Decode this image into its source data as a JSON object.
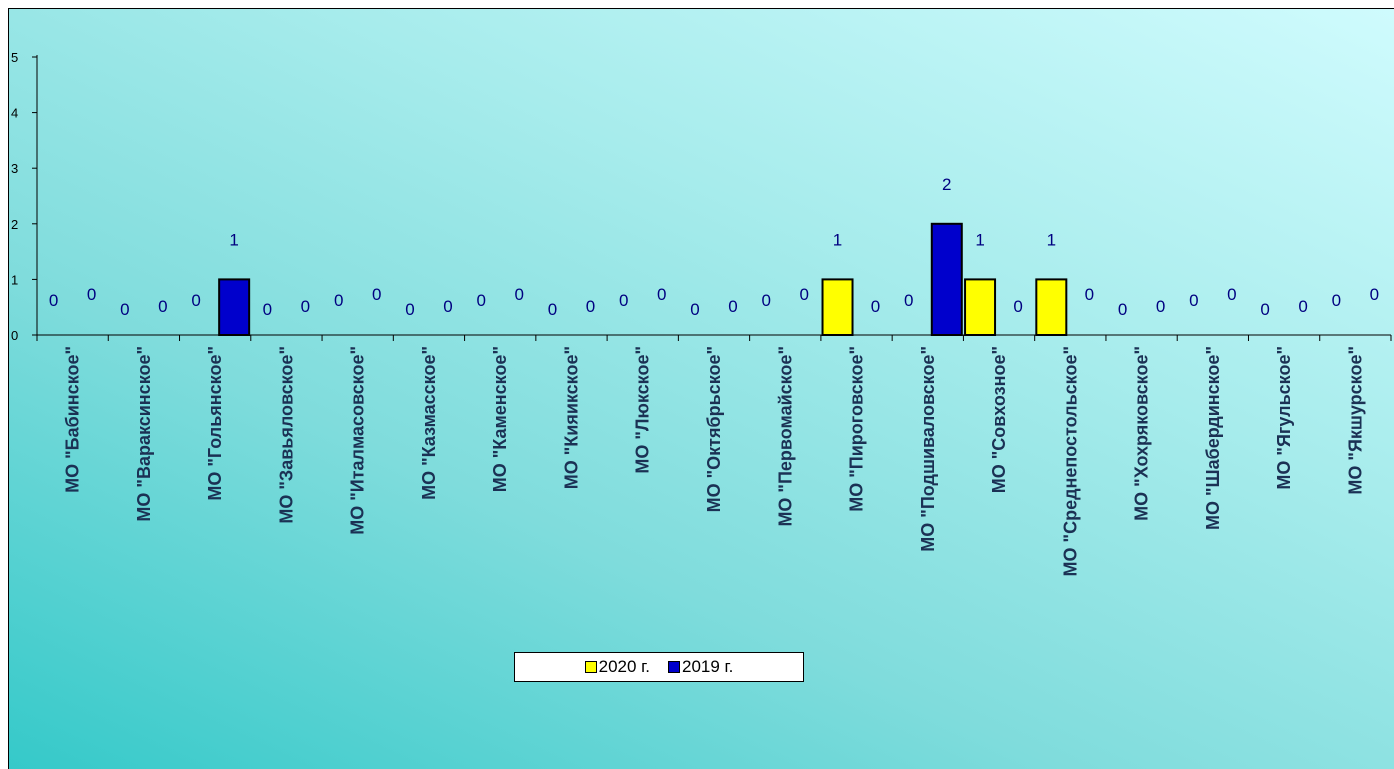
{
  "chart_data": {
    "type": "bar",
    "categories": [
      "МО \"Бабинское\"",
      "МО \"Вараксинское\"",
      "МО \"Гольянское\"",
      "МО \"Завьяловское\"",
      "МО \"Италмасовское\"",
      "МО \"Казмасское\"",
      "МО \"Каменское\"",
      "МО \"Кияикское\"",
      "МО \"Люкское\"",
      "МО \"Октябрьское\"",
      "МО \"Первомайское\"",
      "МО \"Пироговское\"",
      "МО \"Подшиваловское\"",
      "МО \"Совхозное\"",
      "МО \"Среднепостольское\"",
      "МО \"Хохряковское\"",
      "МО \"Шабердинское\"",
      "МО \"Ягульское\"",
      "МО \"Якшурское\""
    ],
    "series": [
      {
        "name": "2020 г.",
        "color": "#ffff00",
        "values": [
          0,
          0,
          0,
          0,
          0,
          0,
          0,
          0,
          0,
          0,
          0,
          1,
          0,
          1,
          1,
          0,
          0,
          0,
          0
        ]
      },
      {
        "name": "2019 г.",
        "color": "#0000cc",
        "values": [
          0,
          0,
          1,
          0,
          0,
          0,
          0,
          0,
          0,
          0,
          0,
          0,
          2,
          0,
          0,
          0,
          0,
          0,
          0
        ]
      }
    ],
    "ylim": [
      0,
      5
    ],
    "yticks": [
      0,
      1,
      2,
      3,
      4,
      5
    ],
    "legend_position": "bottom-center",
    "grid": false,
    "title": "",
    "xlabel": "",
    "ylabel": ""
  }
}
